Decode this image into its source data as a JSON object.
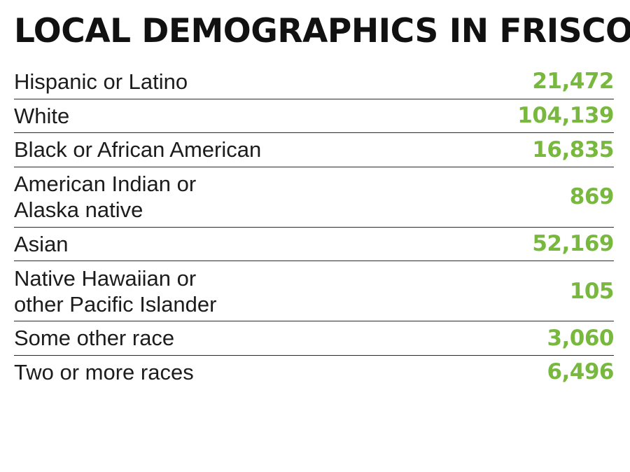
{
  "title": "LOCAL DEMOGRAPHICS IN FRISCO*",
  "accent_color": "#78b83e",
  "chart_data": {
    "type": "table",
    "title": "LOCAL DEMOGRAPHICS IN FRISCO*",
    "columns": [
      "",
      ""
    ],
    "rows": [
      {
        "label": "Hispanic or Latino",
        "value": "21,472"
      },
      {
        "label": "White",
        "value": "104,139"
      },
      {
        "label": "Black or African American",
        "value": "16,835"
      },
      {
        "label": "American Indian or\nAlaska native",
        "value": "869"
      },
      {
        "label": "Asian",
        "value": "52,169"
      },
      {
        "label": "Native Hawaiian or\nother Pacific Islander",
        "value": "105"
      },
      {
        "label": "Some other race",
        "value": "3,060"
      },
      {
        "label": "Two or more races",
        "value": "6,496"
      }
    ]
  }
}
